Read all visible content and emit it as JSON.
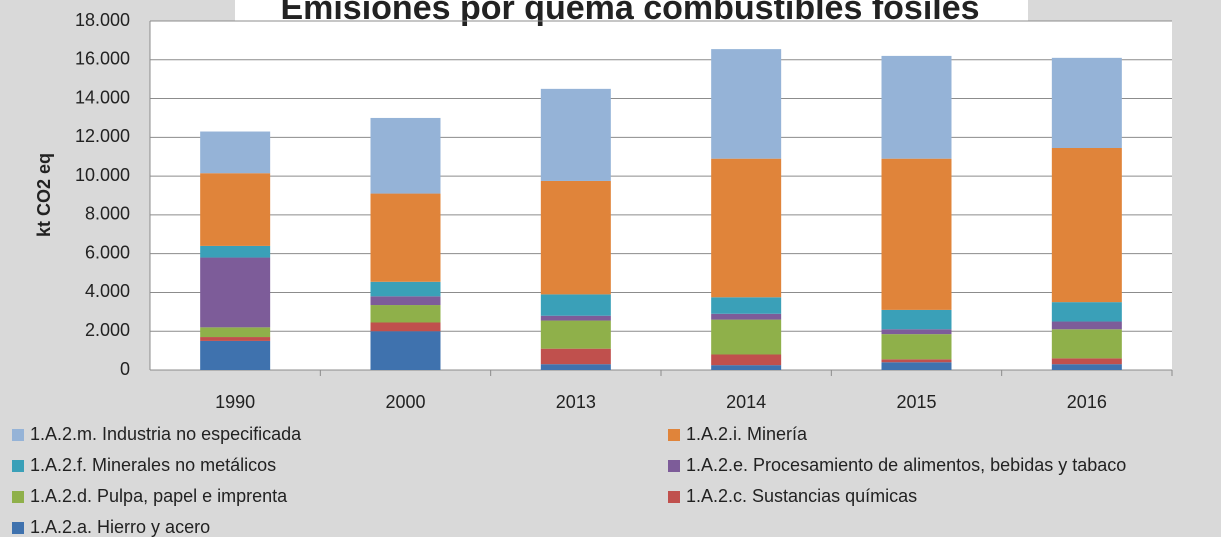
{
  "chart_data": {
    "type": "stacked_bar",
    "title": "Emisiones por quema combustibles fósiles",
    "y_label": "kt CO2  eq",
    "categories": [
      "1990",
      "2000",
      "2013",
      "2014",
      "2015",
      "2016"
    ],
    "series": [
      {
        "name": "1.A.2.a. Hierro y acero",
        "color": "#3f72ae",
        "values": [
          1500,
          2000,
          300,
          250,
          400,
          300
        ]
      },
      {
        "name": "1.A.2.c. Sustancias químicas",
        "color": "#c0504d",
        "values": [
          200,
          450,
          800,
          550,
          150,
          300
        ]
      },
      {
        "name": "1.A.2.d. Pulpa, papel e imprenta",
        "color": "#8fb04a",
        "values": [
          500,
          900,
          1450,
          1800,
          1300,
          1500
        ]
      },
      {
        "name": "1.A.2.e. Procesamiento de alimentos, bebidas y tabaco",
        "color": "#7d5c99",
        "values": [
          3600,
          450,
          250,
          300,
          250,
          400
        ]
      },
      {
        "name": "1.A.2.f. Minerales no metálicos",
        "color": "#3aa0b8",
        "values": [
          600,
          750,
          1100,
          850,
          1000,
          1000
        ]
      },
      {
        "name": "1.A.2.i. Minería",
        "color": "#e0843a",
        "values": [
          3750,
          4550,
          5850,
          7150,
          7800,
          7950
        ]
      },
      {
        "name": "1.A.2.m. Industria no especificada",
        "color": "#95b3d7",
        "values": [
          2150,
          3900,
          4750,
          5650,
          5300,
          4650
        ]
      }
    ],
    "ylim": [
      0,
      18000
    ],
    "yticks": [
      0,
      {
        "value": 2000,
        "label": "2.000"
      },
      {
        "value": 4000,
        "label": "4.000"
      },
      {
        "value": 6000,
        "label": "6.000"
      },
      {
        "value": 8000,
        "label": "8.000"
      },
      {
        "value": 10000,
        "label": "10.000"
      },
      {
        "value": 12000,
        "label": "12.000"
      },
      {
        "value": 14000,
        "label": "14.000"
      },
      {
        "value": 16000,
        "label": "16.000"
      },
      {
        "value": 18000,
        "label": "18.000"
      }
    ],
    "grid": true
  }
}
